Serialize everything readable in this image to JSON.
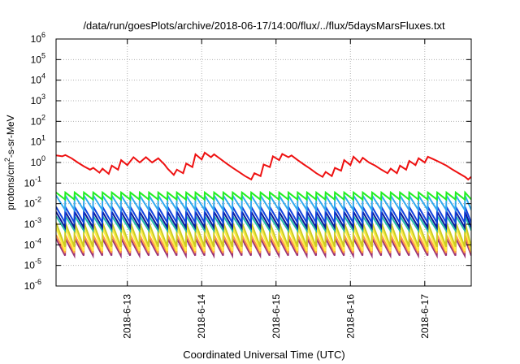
{
  "chart_data": {
    "type": "line",
    "title": "/data/run/goesPlots/archive/2018-06-17/14:00/flux/../flux/5daysMarsFluxes.txt",
    "xlabel": "Coordinated Universal Time (UTC)",
    "ylabel": "protons/cm2-s-sr-MeV",
    "ylabel_parts": {
      "pre": "protons/cm",
      "sup": "2",
      "post": "-s-sr-MeV"
    },
    "y_scale": "log",
    "ylim": [
      1e-06,
      1000000.0
    ],
    "xlim": [
      "2018-06-12 01:00",
      "2018-06-17 15:00"
    ],
    "grid": true,
    "y_ticks": [
      {
        "value": 1e-06,
        "base": "10",
        "exp": "-6"
      },
      {
        "value": 1e-05,
        "base": "10",
        "exp": "-5"
      },
      {
        "value": 0.0001,
        "base": "10",
        "exp": "-4"
      },
      {
        "value": 0.001,
        "base": "10",
        "exp": "-3"
      },
      {
        "value": 0.01,
        "base": "10",
        "exp": "-2"
      },
      {
        "value": 0.1,
        "base": "10",
        "exp": "-1"
      },
      {
        "value": 1,
        "base": "10",
        "exp": "0"
      },
      {
        "value": 10,
        "base": "10",
        "exp": "1"
      },
      {
        "value": 100,
        "base": "10",
        "exp": "2"
      },
      {
        "value": 1000,
        "base": "10",
        "exp": "3"
      },
      {
        "value": 10000,
        "base": "10",
        "exp": "4"
      },
      {
        "value": 100000,
        "base": "10",
        "exp": "5"
      },
      {
        "value": 1000000,
        "base": "10",
        "exp": "6"
      }
    ],
    "x_ticks": [
      {
        "date": "2018-06-13",
        "label": "2018-6-13"
      },
      {
        "date": "2018-06-14",
        "label": "2018-6-14"
      },
      {
        "date": "2018-06-15",
        "label": "2018-6-15"
      },
      {
        "date": "2018-06-16",
        "label": "2018-6-16"
      },
      {
        "date": "2018-06-17",
        "label": "2018-6-17"
      }
    ],
    "series": [
      {
        "color": "#ee1111",
        "points": [
          [
            "2018-06-12 01:00",
            2.2
          ],
          [
            "2018-06-12 03:00",
            2.0
          ],
          [
            "2018-06-12 04:00",
            2.3
          ],
          [
            "2018-06-12 06:00",
            1.6
          ],
          [
            "2018-06-12 08:00",
            1.0
          ],
          [
            "2018-06-12 10:00",
            0.65
          ],
          [
            "2018-06-12 12:00",
            0.45
          ],
          [
            "2018-06-12 13:00",
            0.55
          ],
          [
            "2018-06-12 15:00",
            0.32
          ],
          [
            "2018-06-12 16:00",
            0.5
          ],
          [
            "2018-06-12 18:00",
            0.28
          ],
          [
            "2018-06-12 19:00",
            0.7
          ],
          [
            "2018-06-12 21:00",
            0.45
          ],
          [
            "2018-06-12 22:00",
            1.3
          ],
          [
            "2018-06-13 00:00",
            0.75
          ],
          [
            "2018-06-13 02:00",
            1.8
          ],
          [
            "2018-06-13 04:00",
            1.0
          ],
          [
            "2018-06-13 06:00",
            1.8
          ],
          [
            "2018-06-13 08:00",
            1.0
          ],
          [
            "2018-06-13 10:00",
            1.6
          ],
          [
            "2018-06-13 12:00",
            0.8
          ],
          [
            "2018-06-13 13:00",
            0.5
          ],
          [
            "2018-06-13 15:00",
            0.25
          ],
          [
            "2018-06-13 16:00",
            0.45
          ],
          [
            "2018-06-13 18:00",
            0.3
          ],
          [
            "2018-06-13 19:00",
            0.9
          ],
          [
            "2018-06-13 21:00",
            0.6
          ],
          [
            "2018-06-13 22:00",
            2.5
          ],
          [
            "2018-06-14 00:00",
            1.4
          ],
          [
            "2018-06-14 01:00",
            3.0
          ],
          [
            "2018-06-14 03:00",
            1.8
          ],
          [
            "2018-06-14 04:00",
            2.5
          ],
          [
            "2018-06-14 06:00",
            1.5
          ],
          [
            "2018-06-14 08:00",
            0.9
          ],
          [
            "2018-06-14 10:00",
            0.55
          ],
          [
            "2018-06-14 12:00",
            0.35
          ],
          [
            "2018-06-14 14:00",
            0.22
          ],
          [
            "2018-06-14 16:00",
            0.15
          ],
          [
            "2018-06-14 17:00",
            0.3
          ],
          [
            "2018-06-14 19:00",
            0.22
          ],
          [
            "2018-06-14 20:00",
            0.8
          ],
          [
            "2018-06-14 22:00",
            0.6
          ],
          [
            "2018-06-14 23:00",
            2.0
          ],
          [
            "2018-06-15 01:00",
            1.3
          ],
          [
            "2018-06-15 02:00",
            2.6
          ],
          [
            "2018-06-15 04:00",
            1.8
          ],
          [
            "2018-06-15 05:00",
            2.2
          ],
          [
            "2018-06-15 07:00",
            1.3
          ],
          [
            "2018-06-15 09:00",
            0.8
          ],
          [
            "2018-06-15 11:00",
            0.5
          ],
          [
            "2018-06-15 13:00",
            0.3
          ],
          [
            "2018-06-15 15:00",
            0.2
          ],
          [
            "2018-06-15 16:00",
            0.35
          ],
          [
            "2018-06-15 18:00",
            0.22
          ],
          [
            "2018-06-15 19:00",
            0.55
          ],
          [
            "2018-06-15 21:00",
            0.4
          ],
          [
            "2018-06-15 22:00",
            1.3
          ],
          [
            "2018-06-16 00:00",
            0.75
          ],
          [
            "2018-06-16 01:00",
            1.9
          ],
          [
            "2018-06-16 03:00",
            1.0
          ],
          [
            "2018-06-16 04:00",
            1.7
          ],
          [
            "2018-06-16 06:00",
            1.0
          ],
          [
            "2018-06-16 08:00",
            0.7
          ],
          [
            "2018-06-16 10:00",
            0.45
          ],
          [
            "2018-06-16 12:00",
            0.3
          ],
          [
            "2018-06-16 13:00",
            0.5
          ],
          [
            "2018-06-16 15:00",
            0.3
          ],
          [
            "2018-06-16 16:00",
            0.7
          ],
          [
            "2018-06-16 18:00",
            0.45
          ],
          [
            "2018-06-16 19:00",
            1.2
          ],
          [
            "2018-06-16 21:00",
            0.75
          ],
          [
            "2018-06-16 22:00",
            1.6
          ],
          [
            "2018-06-17 00:00",
            1.0
          ],
          [
            "2018-06-17 01:00",
            1.9
          ],
          [
            "2018-06-17 03:00",
            1.4
          ],
          [
            "2018-06-17 05:00",
            1.0
          ],
          [
            "2018-06-17 07:00",
            0.7
          ],
          [
            "2018-06-17 09:00",
            0.45
          ],
          [
            "2018-06-17 11:00",
            0.3
          ],
          [
            "2018-06-17 13:00",
            0.2
          ],
          [
            "2018-06-17 14:00",
            0.15
          ],
          [
            "2018-06-17 15:00",
            0.2
          ]
        ]
      },
      {
        "color": "#22ee22",
        "sawtooth": {
          "start": "2018-06-12 01:00",
          "end": "2018-06-17 15:00",
          "period_hours": 3,
          "high": 0.035,
          "low": 0.016
        }
      },
      {
        "color": "#33aaee",
        "sawtooth": {
          "start": "2018-06-12 01:00",
          "end": "2018-06-17 15:00",
          "period_hours": 3,
          "high": 0.025,
          "low": 0.005
        }
      },
      {
        "color": "#1144dd",
        "sawtooth": {
          "start": "2018-06-12 01:00",
          "end": "2018-06-17 15:00",
          "period_hours": 3,
          "high": 0.007,
          "low": 0.0012
        }
      },
      {
        "color": "#0a1a99",
        "sawtooth": {
          "start": "2018-06-12 01:00",
          "end": "2018-06-17 15:00",
          "period_hours": 3,
          "high": 0.004,
          "low": 0.0007
        }
      },
      {
        "color": "#22bbaa",
        "sawtooth": {
          "start": "2018-06-12 01:00",
          "end": "2018-06-17 15:00",
          "period_hours": 3,
          "high": 0.0025,
          "low": 0.0005
        }
      },
      {
        "color": "#cccc22",
        "sawtooth": {
          "start": "2018-06-12 01:00",
          "end": "2018-06-17 15:00",
          "period_hours": 3,
          "high": 0.0012,
          "low": 8e-05
        }
      },
      {
        "color": "#ffee44",
        "sawtooth": {
          "start": "2018-06-12 01:00",
          "end": "2018-06-17 15:00",
          "period_hours": 3,
          "high": 0.0007,
          "low": 5e-05
        }
      },
      {
        "color": "#ff9944",
        "sawtooth": {
          "start": "2018-06-12 01:00",
          "end": "2018-06-17 15:00",
          "period_hours": 3,
          "high": 0.0003,
          "low": 4e-05
        }
      },
      {
        "color": "#993377",
        "sawtooth": {
          "start": "2018-06-12 01:00",
          "end": "2018-06-17 15:00",
          "period_hours": 3,
          "high": 0.0002,
          "low": 3e-05
        }
      }
    ]
  }
}
